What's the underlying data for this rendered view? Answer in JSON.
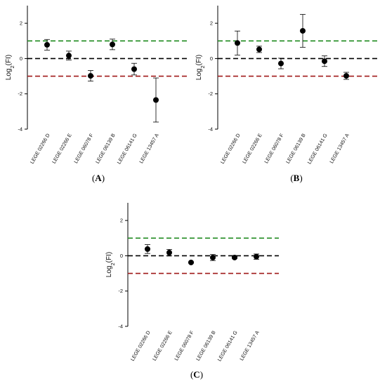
{
  "figure": {
    "colors": {
      "upper_threshold": "#1e8a1e",
      "zero_line": "#000000",
      "lower_threshold": "#a01818",
      "marker": "#000000"
    }
  },
  "chart_data": [
    {
      "type": "scatter",
      "panel_label": "(A)",
      "ylabel": "Log2(FI)",
      "categories": [
        "LEGE 02266 D",
        "LEGE 02266 E",
        "LEGE 06078 F",
        "LEGE 06139 B",
        "LEGE 06141 G",
        "LEGE 13457 A"
      ],
      "values": [
        0.78,
        0.17,
        -0.98,
        0.8,
        -0.6,
        -2.35
      ],
      "errors": [
        0.3,
        0.25,
        0.3,
        0.3,
        0.33,
        1.25
      ],
      "ylim": [
        -4,
        3
      ],
      "yticks": [
        -4,
        -2,
        0,
        2
      ],
      "reference_lines": [
        1,
        0,
        -1
      ]
    },
    {
      "type": "scatter",
      "panel_label": "(B)",
      "ylabel": "Log2(FI)",
      "categories": [
        "LEGE 02266 D",
        "LEGE 02266 E",
        "LEGE 06078 F",
        "LEGE 06139 B",
        "LEGE 06141 G",
        "LEGE 13457 A"
      ],
      "values": [
        0.88,
        0.52,
        -0.28,
        1.57,
        -0.15,
        -0.98
      ],
      "errors": [
        0.68,
        0.18,
        0.3,
        0.93,
        0.3,
        0.2
      ],
      "ylim": [
        -4,
        3
      ],
      "yticks": [
        -4,
        -2,
        0,
        2
      ],
      "reference_lines": [
        1,
        0,
        -1
      ]
    },
    {
      "type": "scatter",
      "panel_label": "(C)",
      "ylabel": "Log2(FI)",
      "categories": [
        "LEGE 02266 D",
        "LEGE 02266 E",
        "LEGE 06078 F",
        "LEGE 06139 B",
        "LEGE 06141 G",
        "LEGE 13457 A"
      ],
      "values": [
        0.38,
        0.18,
        -0.38,
        -0.1,
        -0.1,
        -0.05
      ],
      "errors": [
        0.25,
        0.18,
        0.03,
        0.17,
        0.05,
        0.15
      ],
      "ylim": [
        -4,
        3
      ],
      "yticks": [
        -4,
        -2,
        0,
        2
      ],
      "reference_lines": [
        1,
        0,
        -1
      ]
    }
  ]
}
